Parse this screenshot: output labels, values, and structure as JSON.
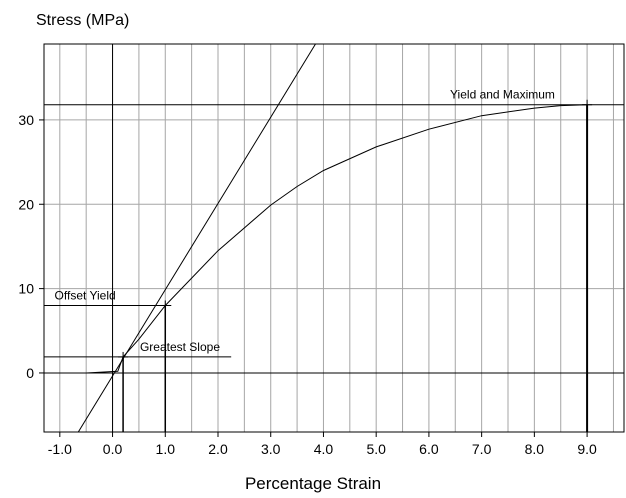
{
  "chart_data": {
    "type": "line",
    "ylabel": "Stress (MPa)",
    "xlabel": "Percentage Strain",
    "xlim": [
      -1.3,
      9.7
    ],
    "ylim": [
      -7,
      39
    ],
    "x_ticks": [
      -1.0,
      0.0,
      1.0,
      2.0,
      3.0,
      4.0,
      5.0,
      6.0,
      7.0,
      8.0,
      9.0
    ],
    "x_tick_labels": [
      "-1.0",
      "0.0",
      "1.0",
      "2.0",
      "3.0",
      "4.0",
      "5.0",
      "6.0",
      "7.0",
      "8.0",
      "9.0"
    ],
    "y_ticks": [
      0,
      10,
      20,
      30
    ],
    "y_tick_labels": [
      "0",
      "10",
      "20",
      "30"
    ],
    "grid": true,
    "series": [
      {
        "values": [
          [
            -0.5,
            0
          ],
          [
            0.1,
            0.2
          ],
          [
            0.2,
            1.9
          ],
          [
            0.5,
            4.0
          ],
          [
            1.0,
            8.0
          ],
          [
            2.0,
            14.5
          ],
          [
            3.0,
            19.9
          ],
          [
            3.5,
            22.1
          ],
          [
            4.0,
            24.0
          ],
          [
            5.0,
            26.8
          ],
          [
            6.0,
            28.9
          ],
          [
            7.0,
            30.5
          ],
          [
            8.0,
            31.4
          ],
          [
            8.5,
            31.7
          ],
          [
            9.0,
            31.8
          ]
        ]
      },
      {
        "values": [
          [
            -0.65,
            -7
          ],
          [
            3.85,
            39
          ]
        ]
      }
    ],
    "annotations": [
      {
        "text": "Greatest Slope",
        "x": 0.2,
        "y": 1.9
      },
      {
        "text": "Offset Yield",
        "x": 1.0,
        "y": 8.0
      },
      {
        "text": "Yield and Maximum",
        "x": 9.0,
        "y": 31.8
      }
    ]
  }
}
